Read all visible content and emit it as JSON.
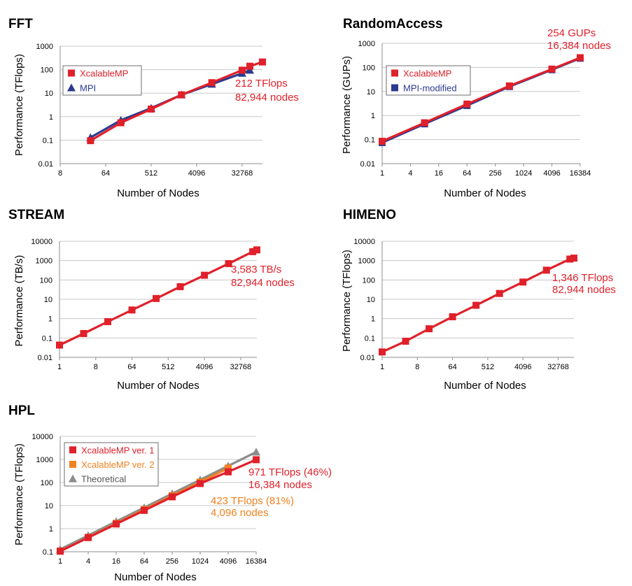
{
  "colors": {
    "red": "#e0202a",
    "blue": "#2b3a8f",
    "orange": "#f08220",
    "gray": "#8c8c8c"
  },
  "chart_data": [
    {
      "id": "fft",
      "type": "line",
      "title": "FFT",
      "xlabel": "Number of Nodes",
      "ylabel": "Performance (TFlops)",
      "xscale": "log2",
      "yscale": "log10",
      "xlim": [
        8,
        82944
      ],
      "ylim": [
        0.01,
        1000
      ],
      "xticks": [
        8,
        64,
        512,
        4096,
        32768
      ],
      "xtick_labels": [
        "8",
        "64",
        "512",
        "4096",
        "32768"
      ],
      "yticks": [
        0.01,
        0.1,
        1,
        10,
        100,
        1000
      ],
      "ytick_labels": [
        "0.01",
        "0.1",
        "1",
        "10",
        "100",
        "1000"
      ],
      "grid": true,
      "legend": "top-left",
      "series": [
        {
          "name": "MPI",
          "color": "blue",
          "marker": "triangle",
          "x": [
            32,
            128,
            512,
            2048,
            8192,
            32768,
            46656
          ],
          "y": [
            0.13,
            0.7,
            2.3,
            8.5,
            24,
            70,
            95
          ]
        },
        {
          "name": "XcalableMP",
          "color": "red",
          "marker": "square",
          "x": [
            32,
            128,
            512,
            2048,
            8192,
            32768,
            46656,
            82944
          ],
          "y": [
            0.095,
            0.55,
            2.1,
            8.5,
            28,
            95,
            140,
            212
          ]
        }
      ],
      "annotations": [
        {
          "text": [
            "212 TFlops",
            "82,944 nodes"
          ],
          "color": "red"
        }
      ]
    },
    {
      "id": "random",
      "type": "line",
      "title": "RandomAccess",
      "xlabel": "Number of Nodes",
      "ylabel": "Performance (GUPs)",
      "xscale": "log2",
      "yscale": "log10",
      "xlim": [
        1,
        16384
      ],
      "ylim": [
        0.01,
        1000
      ],
      "xticks": [
        1,
        4,
        16,
        64,
        256,
        1024,
        4096,
        16384
      ],
      "xtick_labels": [
        "1",
        "4",
        "16",
        "64",
        "256",
        "1024",
        "4096",
        "16384"
      ],
      "yticks": [
        0.01,
        0.1,
        1,
        10,
        100,
        1000
      ],
      "ytick_labels": [
        "0.01",
        "0.1",
        "1",
        "10",
        "100",
        "1000"
      ],
      "grid": true,
      "legend": "top-left",
      "series": [
        {
          "name": "MPI-modified",
          "color": "blue",
          "marker": "square",
          "x": [
            1,
            8,
            64,
            512,
            4096,
            16384
          ],
          "y": [
            0.075,
            0.45,
            2.6,
            16,
            80,
            240
          ]
        },
        {
          "name": "XcalableMP",
          "color": "red",
          "marker": "square",
          "x": [
            1,
            8,
            64,
            512,
            4096,
            16384
          ],
          "y": [
            0.085,
            0.5,
            3.0,
            17,
            85,
            254
          ]
        }
      ],
      "annotations": [
        {
          "text": [
            "254 GUPs",
            "16,384 nodes"
          ],
          "color": "red"
        }
      ]
    },
    {
      "id": "stream",
      "type": "line",
      "title": "STREAM",
      "xlabel": "Number of Nodes",
      "ylabel": "Performance (TB/s)",
      "xscale": "log2",
      "yscale": "log10",
      "xlim": [
        1,
        82944
      ],
      "ylim": [
        0.01,
        10000
      ],
      "xticks": [
        1,
        8,
        64,
        512,
        4096,
        32768
      ],
      "xtick_labels": [
        "1",
        "8",
        "64",
        "512",
        "4096",
        "32768"
      ],
      "yticks": [
        0.01,
        0.1,
        1,
        10,
        100,
        1000,
        10000
      ],
      "ytick_labels": [
        "0.01",
        "0.1",
        "1",
        "10",
        "100",
        "1000",
        "10000"
      ],
      "grid": true,
      "legend": "none",
      "series": [
        {
          "name": "XcalableMP",
          "color": "red",
          "marker": "square",
          "x": [
            1,
            4,
            16,
            64,
            256,
            1024,
            4096,
            16384,
            65536,
            82944
          ],
          "y": [
            0.043,
            0.17,
            0.7,
            2.8,
            11,
            45,
            175,
            700,
            2900,
            3583
          ]
        }
      ],
      "annotations": [
        {
          "text": [
            "3,583 TB/s",
            "82,944 nodes"
          ],
          "color": "red"
        }
      ]
    },
    {
      "id": "himeno",
      "type": "line",
      "title": "HIMENO",
      "xlabel": "Number of Nodes",
      "ylabel": "Performance (TFlops)",
      "xscale": "log2",
      "yscale": "log10",
      "xlim": [
        1,
        82944
      ],
      "ylim": [
        0.01,
        10000
      ],
      "xticks": [
        1,
        8,
        64,
        512,
        4096,
        32768
      ],
      "xtick_labels": [
        "1",
        "8",
        "64",
        "512",
        "4096",
        "32768"
      ],
      "yticks": [
        0.01,
        0.1,
        1,
        10,
        100,
        1000,
        10000
      ],
      "ytick_labels": [
        "0.01",
        "0.1",
        "1",
        "10",
        "100",
        "1000",
        "10000"
      ],
      "grid": true,
      "legend": "none",
      "series": [
        {
          "name": "XcalableMP",
          "color": "red",
          "marker": "square",
          "x": [
            1,
            4,
            16,
            64,
            256,
            1024,
            4096,
            16384,
            65536,
            82944
          ],
          "y": [
            0.019,
            0.068,
            0.3,
            1.25,
            4.9,
            20,
            78,
            320,
            1200,
            1346
          ]
        }
      ],
      "annotations": [
        {
          "text": [
            "1,346 TFlops",
            "82,944 nodes"
          ],
          "color": "red"
        }
      ]
    },
    {
      "id": "hpl",
      "type": "line",
      "title": "HPL",
      "xlabel": "Number of Nodes",
      "ylabel": "Performance (TFlops)",
      "xscale": "log2",
      "yscale": "log10",
      "xlim": [
        1,
        16384
      ],
      "ylim": [
        0.1,
        10000
      ],
      "xticks": [
        1,
        4,
        16,
        64,
        256,
        1024,
        4096,
        16384
      ],
      "xtick_labels": [
        "1",
        "4",
        "16",
        "64",
        "256",
        "1024",
        "4096",
        "16384"
      ],
      "yticks": [
        0.1,
        1,
        10,
        100,
        1000,
        10000
      ],
      "ytick_labels": [
        "0.1",
        "1",
        "10",
        "100",
        "1000",
        "10000"
      ],
      "grid": true,
      "legend": "top-left",
      "series": [
        {
          "name": "Theoretical",
          "color": "gray",
          "marker": "triangle",
          "x": [
            1,
            4,
            16,
            64,
            256,
            1024,
            4096,
            16384
          ],
          "y": [
            0.128,
            0.51,
            2.05,
            8.2,
            33,
            131,
            524,
            2097
          ]
        },
        {
          "name": "XcalableMP ver. 2",
          "color": "orange",
          "marker": "square",
          "x": [
            1,
            4,
            16,
            64,
            256,
            1024,
            4096
          ],
          "y": [
            0.107,
            0.42,
            1.7,
            6.7,
            27,
            105,
            423
          ]
        },
        {
          "name": "XcalableMP ver. 1",
          "color": "red",
          "marker": "square",
          "x": [
            1,
            4,
            16,
            64,
            256,
            1024,
            4096,
            16384
          ],
          "y": [
            0.105,
            0.41,
            1.6,
            6.2,
            24,
            90,
            290,
            971
          ]
        }
      ],
      "annotations": [
        {
          "text": [
            "971 TFlops (46%)",
            "16,384 nodes"
          ],
          "color": "red"
        },
        {
          "text": [
            "423 TFlops (81%)",
            "4,096 nodes"
          ],
          "color": "orange"
        }
      ]
    }
  ]
}
